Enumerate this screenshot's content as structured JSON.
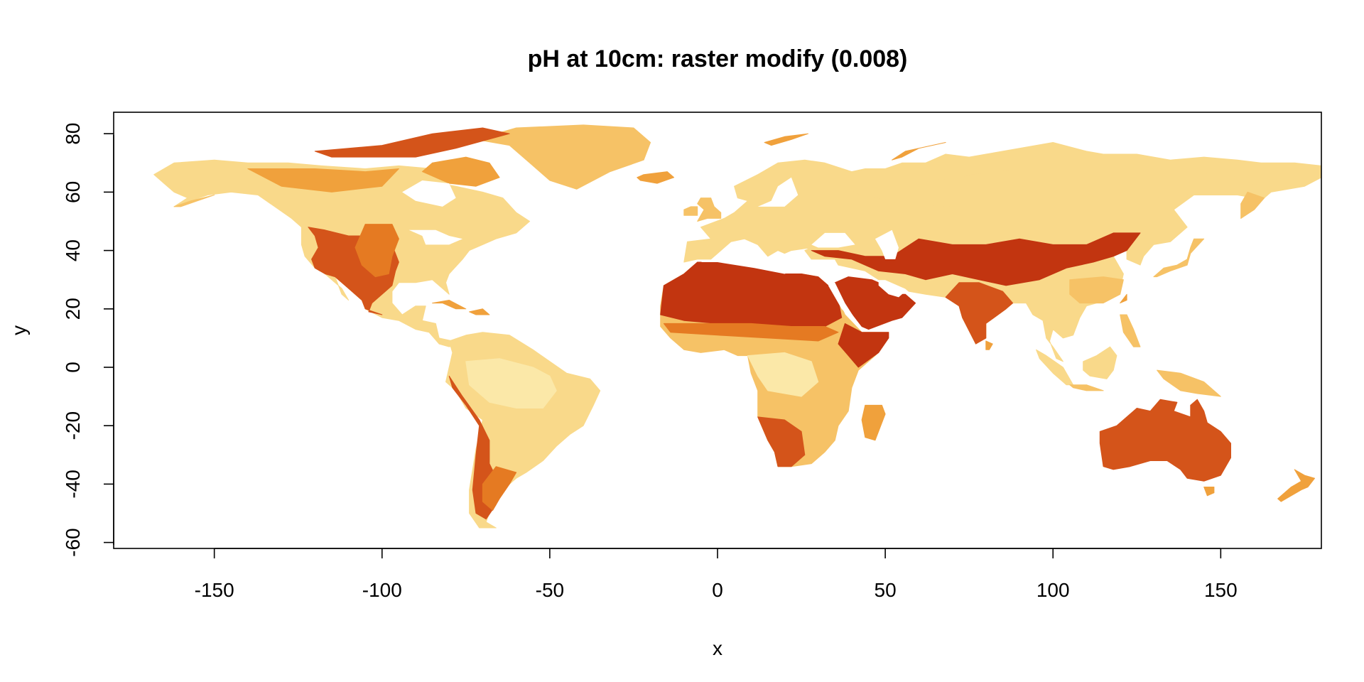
{
  "title": "pH at 10cm: raster modify (0.008)",
  "xlabel": "x",
  "ylabel": "y",
  "x_ticks": [
    "-150",
    "-100",
    "-50",
    "0",
    "50",
    "100",
    "150"
  ],
  "y_ticks": [
    "-60",
    "-40",
    "-20",
    "0",
    "20",
    "40",
    "60",
    "80"
  ],
  "map": {
    "projection": "longitude/latitude",
    "xlim": [
      -180,
      180
    ],
    "ylim": [
      -60,
      85
    ],
    "x_tick_values": [
      -150,
      -100,
      -50,
      0,
      50,
      100,
      150
    ],
    "y_tick_values": [
      -60,
      -40,
      -20,
      0,
      20,
      40,
      60,
      80
    ],
    "palette": [
      "#fbe8a8",
      "#f9d98a",
      "#f6c266",
      "#f0a13c",
      "#e57a22",
      "#d4541a",
      "#c23510"
    ],
    "palette_meaning": "light = lower pH (acidic), dark red = higher pH (alkaline)",
    "background_color": "#ffffff",
    "box": true
  }
}
